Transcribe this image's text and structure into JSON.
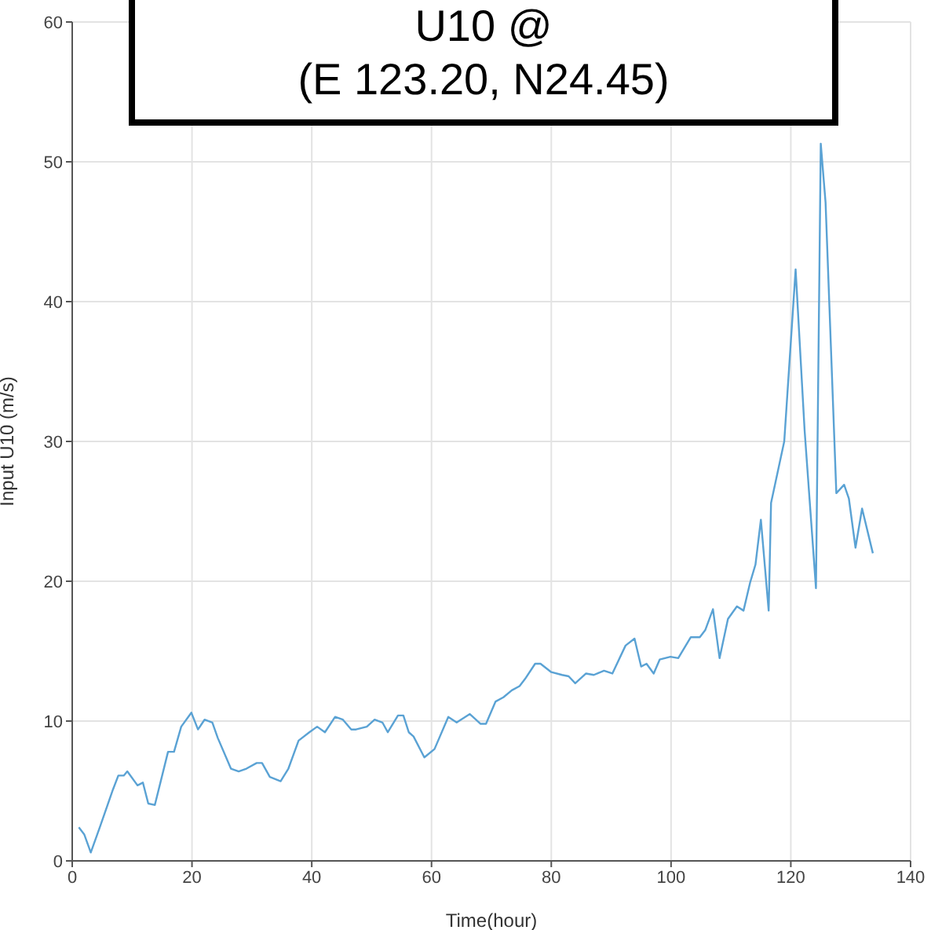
{
  "chart_data": {
    "type": "line",
    "title": "U10 @\n(E 123.20, N24.45)",
    "xlabel": "Time(hour)",
    "ylabel": "Input U10 (m/s)",
    "x": [
      1.1,
      2.0,
      3.1,
      4.6,
      6.8,
      7.7,
      8.6,
      9.2,
      10.9,
      11.8,
      12.7,
      13.8,
      16,
      17,
      18.2,
      19.9,
      21,
      22.1,
      23.4,
      24.3,
      26.5,
      27.8,
      29.1,
      30.8,
      31.7,
      33,
      34.8,
      36.1,
      37.8,
      39.6,
      40.9,
      42.2,
      43.9,
      45.2,
      46.6,
      47.4,
      49.2,
      50.5,
      51.8,
      52.7,
      54.4,
      55.3,
      56.2,
      57,
      58.8,
      60.5,
      62.8,
      64.2,
      66.4,
      68.2,
      69.1,
      70.7,
      72,
      73.4,
      74.7,
      75.6,
      77.3,
      78.2,
      80,
      81.8,
      82.9,
      84,
      85.8,
      87.1,
      88.8,
      90.2,
      92.4,
      93.9,
      95,
      95.9,
      97.1,
      98.1,
      99.9,
      101.2,
      103.3,
      104.8,
      105.7,
      107,
      108.1,
      109.5,
      111,
      112.1,
      113.2,
      114.1,
      115,
      116.3,
      116.7,
      118,
      118.9,
      120.8,
      122.3,
      124.2,
      125,
      125.8,
      127.6,
      128.9,
      129.7,
      130.8,
      131.9,
      133.7
    ],
    "series": [
      {
        "color": "#5aa2d4",
        "values": [
          2.4,
          1.9,
          0.6,
          2.4,
          5.1,
          6.1,
          6.1,
          6.4,
          5.4,
          5.6,
          4.1,
          4.0,
          7.8,
          7.8,
          9.6,
          10.6,
          9.4,
          10.1,
          9.9,
          8.8,
          6.6,
          6.4,
          6.6,
          7.0,
          7.0,
          6.0,
          5.7,
          6.6,
          8.6,
          9.2,
          9.6,
          9.2,
          10.3,
          10.1,
          9.4,
          9.4,
          9.6,
          10.1,
          9.9,
          9.2,
          10.4,
          10.4,
          9.2,
          8.9,
          7.4,
          8.0,
          10.3,
          9.9,
          10.5,
          9.8,
          9.8,
          11.4,
          11.7,
          12.2,
          12.5,
          13.0,
          14.1,
          14.1,
          13.5,
          13.3,
          13.2,
          12.7,
          13.4,
          13.3,
          13.6,
          13.4,
          15.4,
          15.9,
          13.9,
          14.1,
          13.4,
          14.4,
          14.6,
          14.5,
          16,
          16,
          16.5,
          18,
          14.5,
          17.3,
          18.2,
          17.9,
          19.9,
          21.2,
          24.4,
          17.9,
          25.6,
          28.2,
          30,
          42.3,
          30.8,
          19.5,
          51.3,
          47.1,
          26.3,
          26.9,
          25.9,
          22.4,
          25.2,
          22.0
        ]
      }
    ],
    "xlim": [
      0,
      140
    ],
    "xticks": [
      0,
      20,
      40,
      60,
      80,
      100,
      120,
      140
    ],
    "ylim": [
      0,
      60
    ],
    "yticks": [
      0,
      10,
      20,
      30,
      40,
      50,
      60
    ],
    "grid": true,
    "marker": "none",
    "line_style": "solid"
  }
}
